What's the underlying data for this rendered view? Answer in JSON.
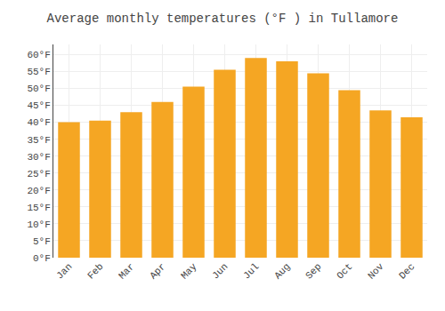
{
  "chart_data": {
    "type": "bar",
    "title": "Average monthly temperatures (°F ) in Tullamore",
    "categories": [
      "Jan",
      "Feb",
      "Mar",
      "Apr",
      "May",
      "Jun",
      "Jul",
      "Aug",
      "Sep",
      "Oct",
      "Nov",
      "Dec"
    ],
    "values": [
      40,
      40.5,
      43,
      46,
      50.5,
      55.5,
      59,
      58,
      54.5,
      49.5,
      43.5,
      41.5
    ],
    "color": "#F5A623",
    "ylim": [
      0,
      63
    ],
    "yticks": [
      {
        "value": 0,
        "label": "0°F"
      },
      {
        "value": 5,
        "label": "5°F"
      },
      {
        "value": 10,
        "label": "10°F"
      },
      {
        "value": 15,
        "label": "15°F"
      },
      {
        "value": 20,
        "label": "20°F"
      },
      {
        "value": 25,
        "label": "25°F"
      },
      {
        "value": 30,
        "label": "30°F"
      },
      {
        "value": 35,
        "label": "35°F"
      },
      {
        "value": 40,
        "label": "40°F"
      },
      {
        "value": 45,
        "label": "45°F"
      },
      {
        "value": 50,
        "label": "50°F"
      },
      {
        "value": 55,
        "label": "55°F"
      },
      {
        "value": 60,
        "label": "60°F"
      }
    ],
    "grid": true
  }
}
